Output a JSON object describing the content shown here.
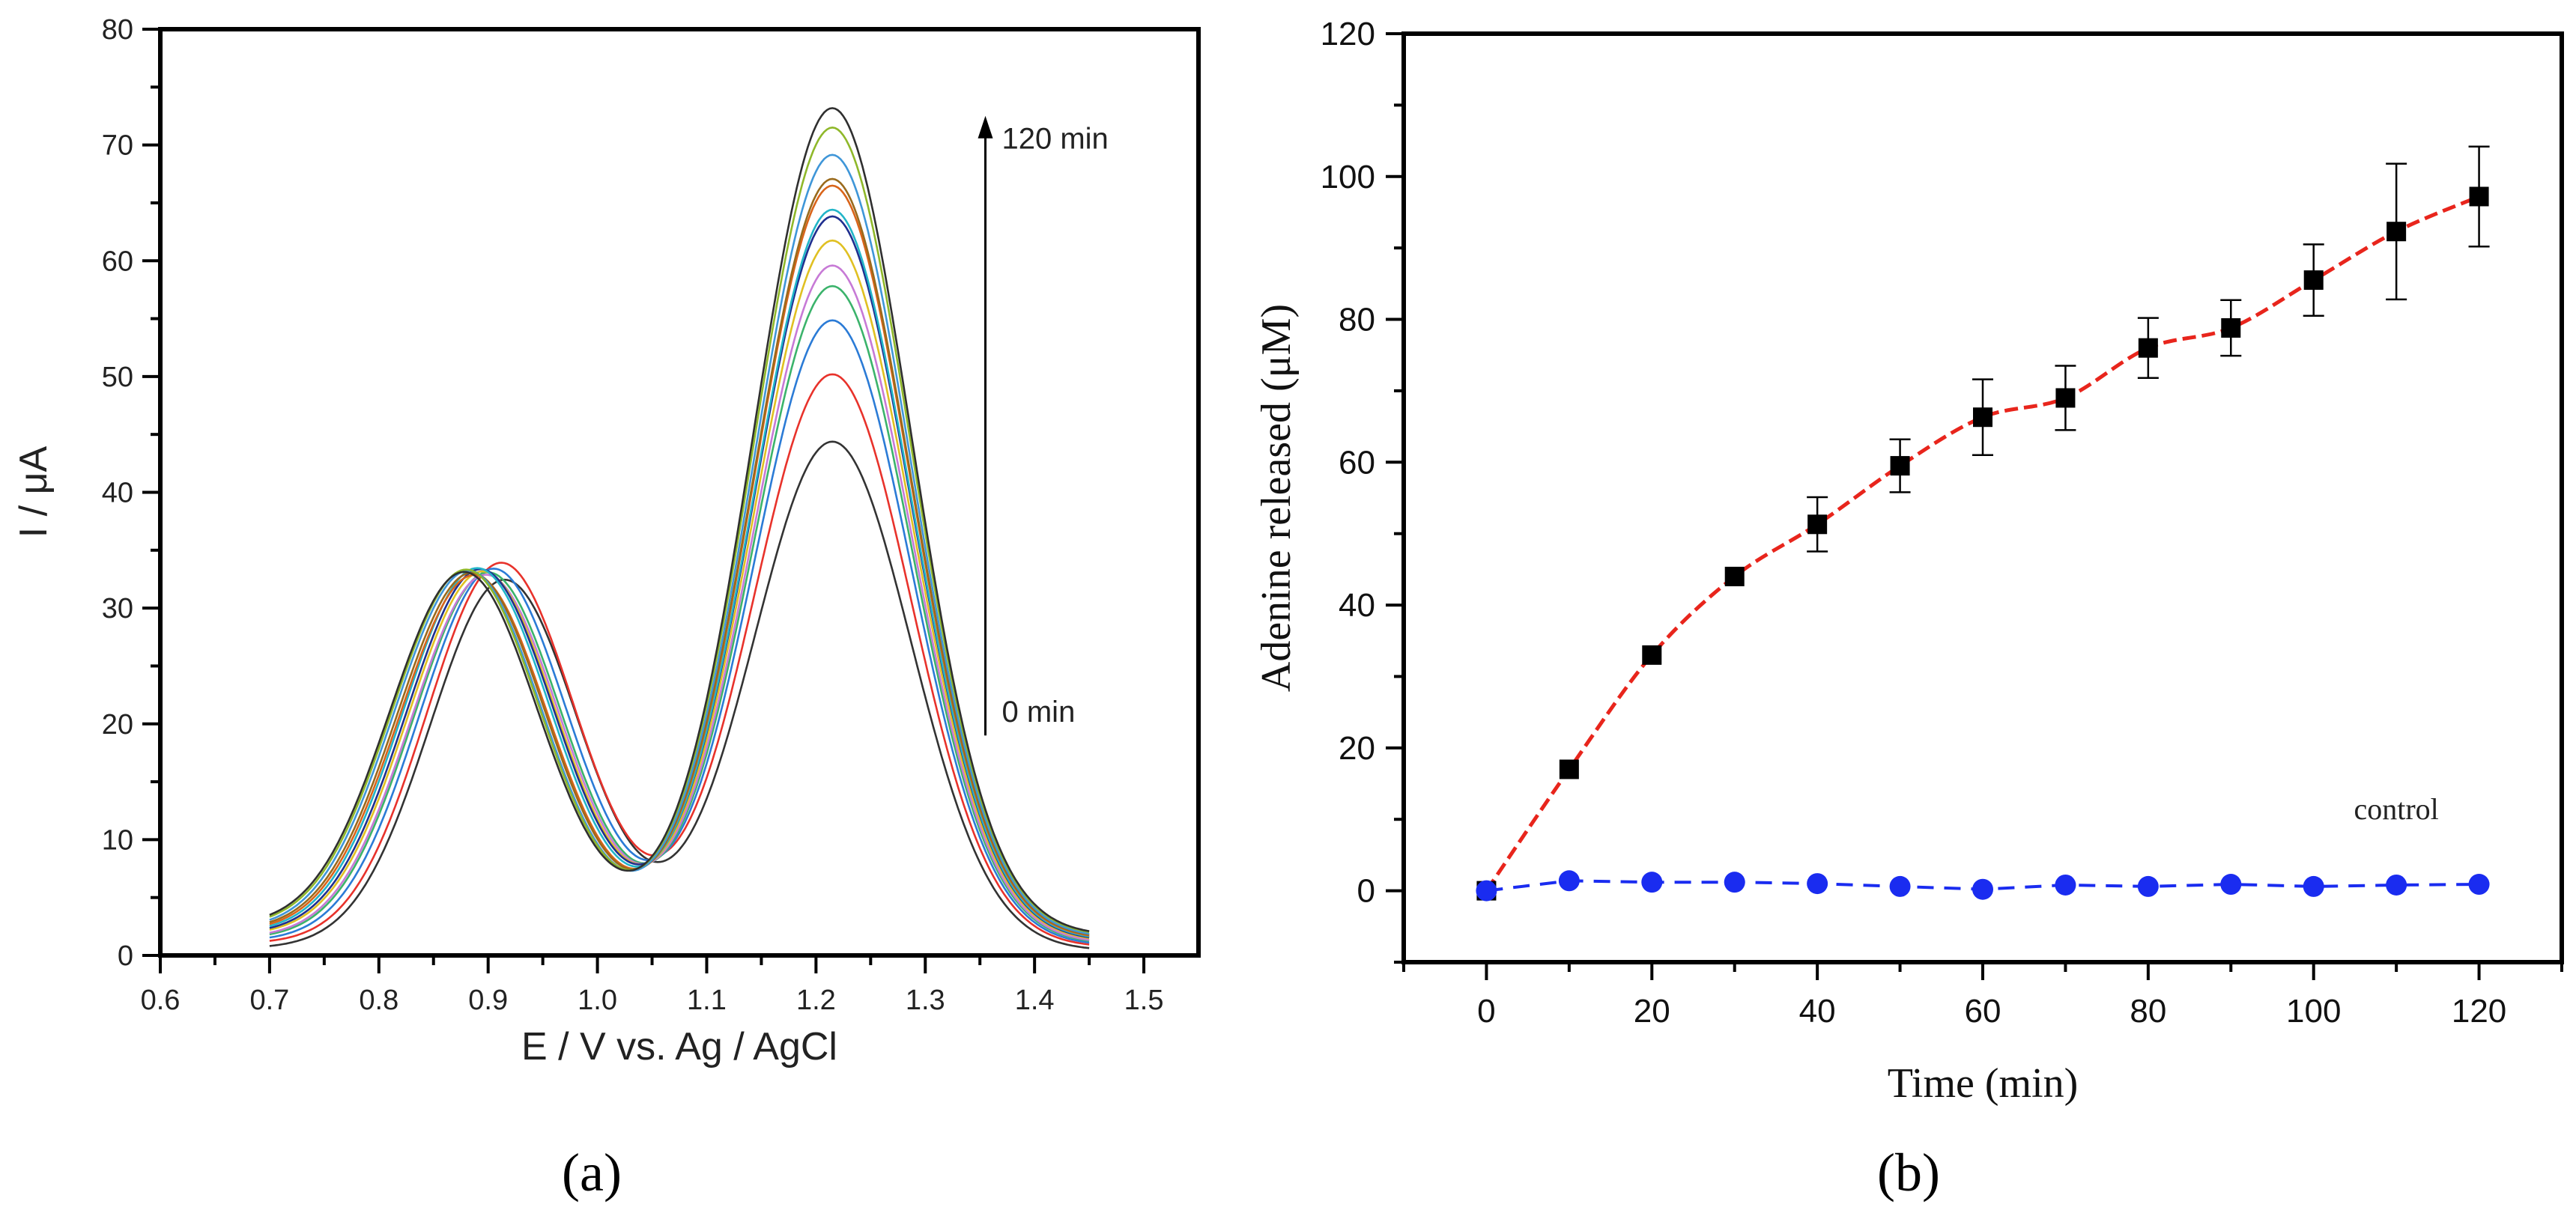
{
  "chart_data": [
    {
      "type": "line",
      "panel_label": "(a)",
      "xlabel": "E / V vs. Ag / AgCl",
      "ylabel": "I / μA",
      "xlim": [
        0.6,
        1.55
      ],
      "ylim": [
        0,
        80
      ],
      "x_ticks": [
        "0.6",
        "0.7",
        "0.8",
        "0.9",
        "1.0",
        "1.1",
        "1.2",
        "1.3",
        "1.4",
        "1.5"
      ],
      "y_ticks": [
        "0",
        "10",
        "20",
        "30",
        "40",
        "50",
        "60",
        "70",
        "80"
      ],
      "x_range": [
        0.7,
        1.45
      ],
      "grid": false,
      "annotations": {
        "arrow_top": "120 min",
        "arrow_bottom": "0 min",
        "arrow_x": 1.355,
        "arrow_y": [
          19,
          72
        ]
      },
      "series": [
        {
          "color": "#333333",
          "peak1": 32.5,
          "pos1": 0.915,
          "peak2": 44.5,
          "base": 0.6
        },
        {
          "color": "#e8322b",
          "peak1": 34.0,
          "pos1": 0.912,
          "peak2": 50.0,
          "base": 1.0
        },
        {
          "color": "#2b7bd6",
          "peak1": 33.5,
          "pos1": 0.905,
          "peak2": 54.5,
          "base": 1.2
        },
        {
          "color": "#3bb36b",
          "peak1": 33.2,
          "pos1": 0.9,
          "peak2": 57.3,
          "base": 1.4
        },
        {
          "color": "#c77ad6",
          "peak1": 33.0,
          "pos1": 0.898,
          "peak2": 59.0,
          "base": 1.5
        },
        {
          "color": "#e0c022",
          "peak1": 33.3,
          "pos1": 0.895,
          "peak2": 61.0,
          "base": 1.7
        },
        {
          "color": "#1f2f8f",
          "peak1": 33.5,
          "pos1": 0.893,
          "peak2": 63.0,
          "base": 1.8
        },
        {
          "color": "#22b5c8",
          "peak1": 33.6,
          "pos1": 0.89,
          "peak2": 63.5,
          "base": 1.9
        },
        {
          "color": "#d9641a",
          "peak1": 33.0,
          "pos1": 0.887,
          "peak2": 65.5,
          "base": 2.0
        },
        {
          "color": "#9a6a1c",
          "peak1": 33.2,
          "pos1": 0.885,
          "peak2": 66.0,
          "base": 2.1
        },
        {
          "color": "#3f96d8",
          "peak1": 33.4,
          "pos1": 0.882,
          "peak2": 68.0,
          "base": 2.2
        },
        {
          "color": "#8fb82a",
          "peak1": 33.5,
          "pos1": 0.88,
          "peak2": 70.2,
          "base": 2.4
        },
        {
          "color": "#2f2f2f",
          "peak1": 33.3,
          "pos1": 0.878,
          "peak2": 71.8,
          "base": 2.5
        }
      ]
    },
    {
      "type": "scatter",
      "panel_label": "(b)",
      "xlabel": "Time (min)",
      "ylabel": "Adenine released (μM)",
      "xlim": [
        -10,
        130
      ],
      "ylim": [
        -10,
        120
      ],
      "x_ticks": [
        "0",
        "20",
        "40",
        "60",
        "80",
        "100",
        "120"
      ],
      "y_ticks": [
        "0",
        "20",
        "40",
        "60",
        "80",
        "100",
        "120"
      ],
      "grid": false,
      "annotations": {
        "control_label": "control",
        "control_label_pos": [
          110,
          10
        ]
      },
      "series": [
        {
          "marker": "square",
          "color": "#000000",
          "fit_color": "#e8251c",
          "x": [
            0,
            10,
            20,
            30,
            40,
            50,
            60,
            70,
            80,
            90,
            100,
            110,
            120
          ],
          "y": [
            0,
            17,
            33,
            44,
            51.3,
            59.5,
            66.3,
            69,
            76,
            78.8,
            85.5,
            92.3,
            97.2
          ],
          "yerr": [
            0,
            0,
            0,
            0,
            3.8,
            3.7,
            5.3,
            4.5,
            4.2,
            3.9,
            5.0,
            9.5,
            7.0
          ]
        },
        {
          "marker": "circle",
          "color": "#1a2cf0",
          "x": [
            0,
            10,
            20,
            30,
            40,
            50,
            60,
            70,
            80,
            90,
            100,
            110,
            120
          ],
          "y": [
            0,
            1.4,
            1.2,
            1.2,
            1.0,
            0.6,
            0.2,
            0.8,
            0.6,
            0.9,
            0.6,
            0.8,
            0.9
          ]
        }
      ]
    }
  ]
}
